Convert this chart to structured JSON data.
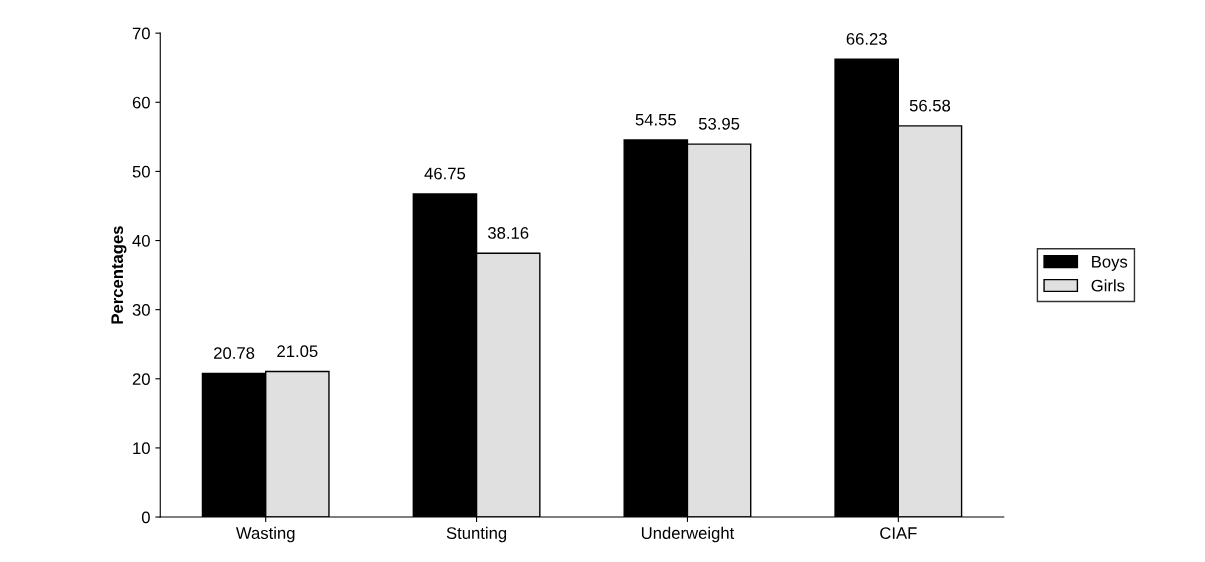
{
  "chart_data": {
    "type": "bar",
    "ylabel": "Percentages",
    "categories": [
      "Wasting",
      "Stunting",
      "Underweight",
      "CIAF"
    ],
    "series": [
      {
        "name": "Boys",
        "color": "#000000",
        "values": [
          20.78,
          46.75,
          54.55,
          66.23
        ]
      },
      {
        "name": "Girls",
        "color": "#e0e0e0",
        "values": [
          21.05,
          38.16,
          53.95,
          56.58
        ]
      }
    ],
    "ylim": [
      0,
      70
    ],
    "yticks": [
      0,
      10,
      20,
      30,
      40,
      50,
      60,
      70
    ],
    "grid": false,
    "legend": "right",
    "data_labels": true
  }
}
